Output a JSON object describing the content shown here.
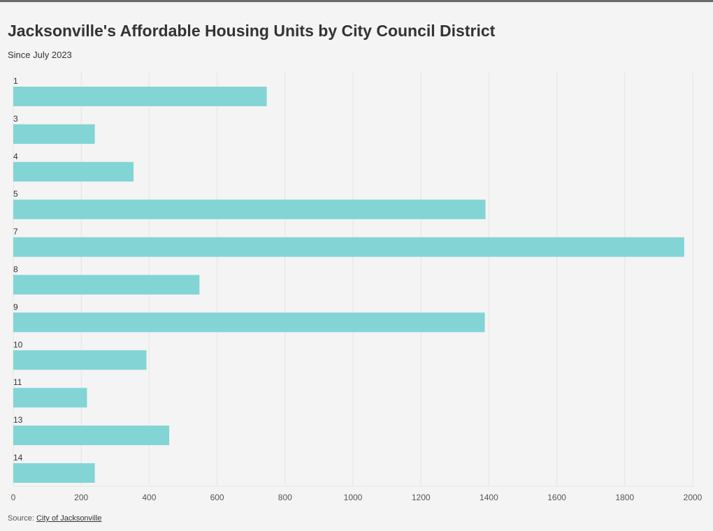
{
  "title": "Jacksonville's Affordable Housing Units by City Council District",
  "subtitle": "Since July 2023",
  "footer": {
    "source_label": "Source: ",
    "source_link": "City of Jacksonville"
  },
  "colors": {
    "bar": "#82d5d4",
    "grid": "#e4e4e4",
    "text": "#333333",
    "background": "#f4f4f4"
  },
  "chart_data": {
    "type": "bar",
    "orientation": "horizontal",
    "title": "Jacksonville's Affordable Housing Units by City Council District",
    "subtitle": "Since July 2023",
    "categories": [
      "1",
      "3",
      "4",
      "5",
      "7",
      "8",
      "9",
      "10",
      "11",
      "13",
      "14"
    ],
    "values": [
      746,
      240,
      354,
      1390,
      1975,
      548,
      1388,
      392,
      217,
      459,
      240
    ],
    "xlim": [
      0,
      2000
    ],
    "x_ticks": [
      0,
      200,
      400,
      600,
      800,
      1000,
      1200,
      1400,
      1600,
      1800,
      2000
    ],
    "xlabel": "",
    "ylabel": "",
    "grid": true,
    "category_label_position": "above bar"
  }
}
